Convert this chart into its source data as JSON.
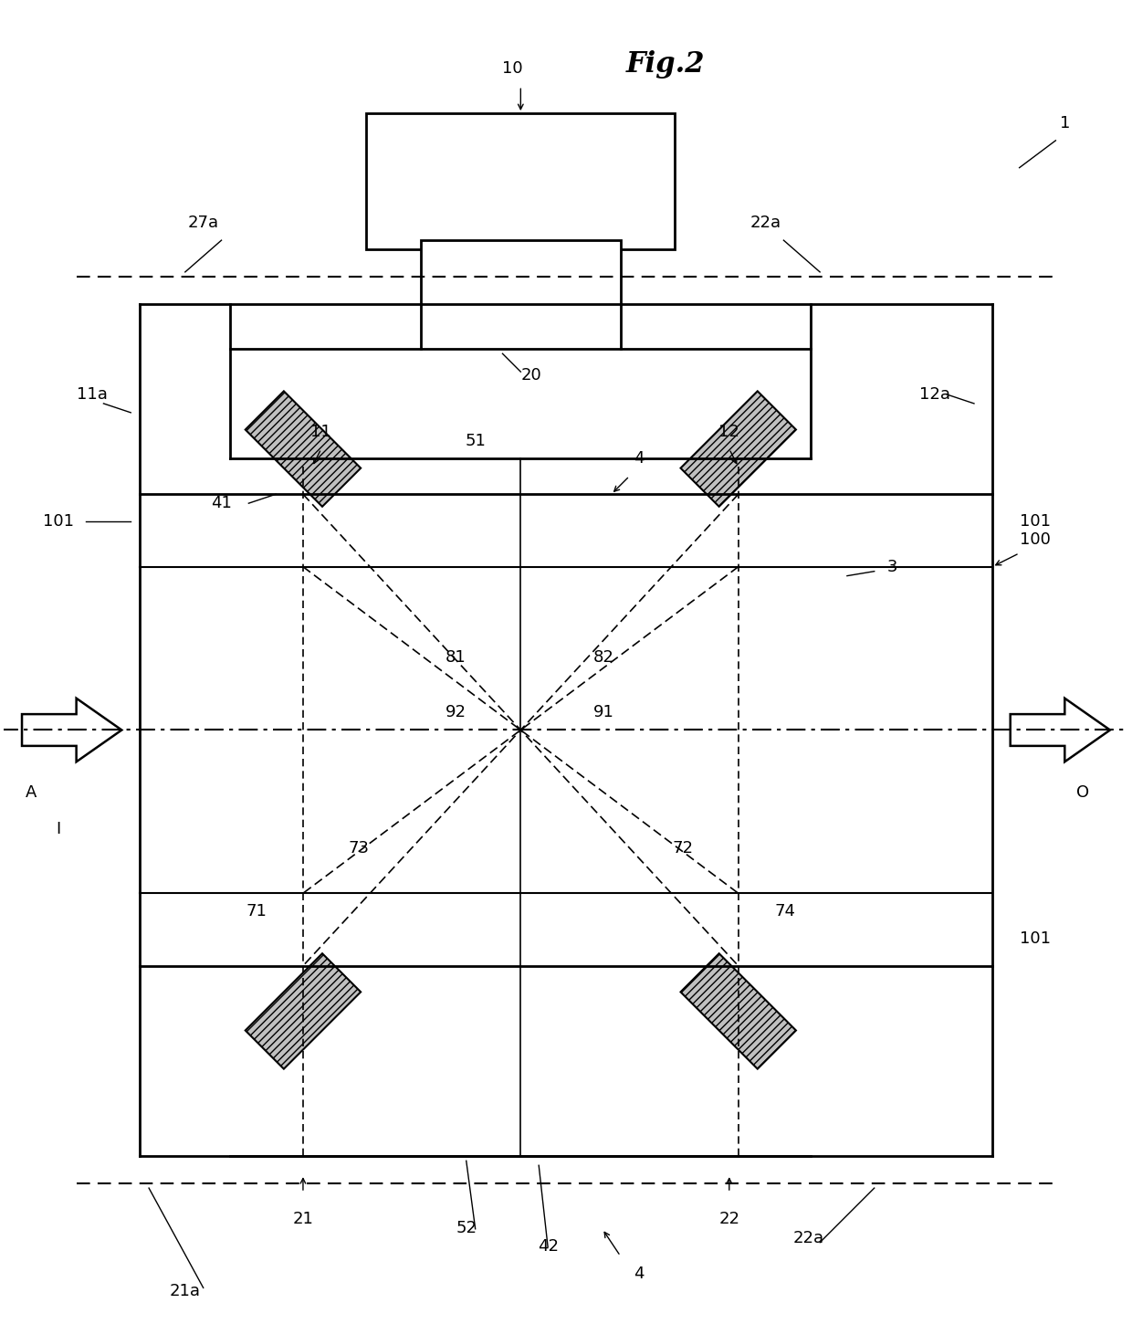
{
  "title": "Fig.2",
  "bg_color": "#ffffff",
  "fig_width": 12.4,
  "fig_height": 14.5,
  "dpi": 100,
  "colors": {
    "main": "#000000",
    "hatch_face": "#c8c8c8"
  },
  "labels": {
    "fig_title": "Fig.2",
    "label_10": "10",
    "label_1": "1",
    "label_27a_top": "27a",
    "label_22a_top": "22a",
    "label_20": "20",
    "label_11a": "11a",
    "label_12a": "12a",
    "label_4_top": "4",
    "label_11": "11",
    "label_12": "12",
    "label_51": "51",
    "label_41": "41",
    "label_3": "3",
    "label_100": "100",
    "label_101a": "101",
    "label_101b": "101",
    "label_101c": "101",
    "label_81": "81",
    "label_82": "82",
    "label_92": "92",
    "label_91": "91",
    "label_A": "A",
    "label_I": "I",
    "label_O": "O",
    "label_73": "73",
    "label_72": "72",
    "label_71": "71",
    "label_74": "74",
    "label_21": "21",
    "label_22": "22",
    "label_52": "52",
    "label_42": "42",
    "label_4_bot": "4",
    "label_21a": "21a",
    "label_22a_bot": "22a"
  }
}
